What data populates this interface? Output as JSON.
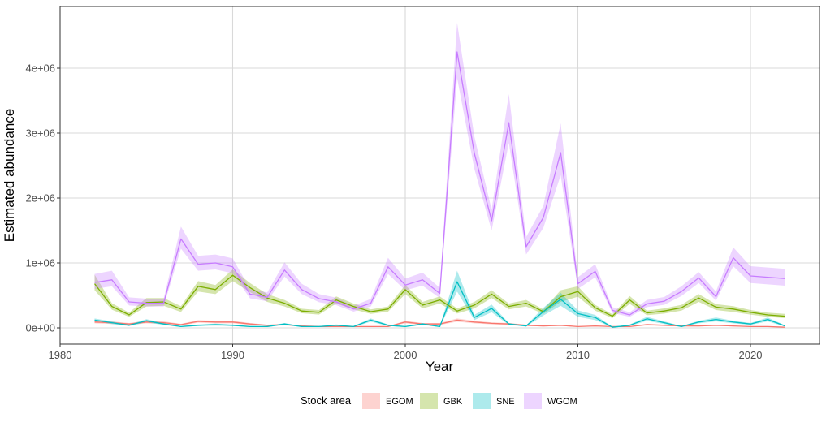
{
  "chart_data": {
    "type": "line",
    "xlabel": "Year",
    "ylabel": "Estimated abundance",
    "xlim": [
      1980,
      2024
    ],
    "ylim": [
      -250000,
      4950000
    ],
    "xticks": [
      1980,
      1990,
      2000,
      2010,
      2020
    ],
    "xtick_labels": [
      "1980",
      "1990",
      "2000",
      "2010",
      "2020"
    ],
    "yticks": [
      0,
      1000000,
      2000000,
      3000000,
      4000000
    ],
    "ytick_labels": [
      "0e+00",
      "1e+06",
      "2e+06",
      "3e+06",
      "4e+06"
    ],
    "grid": true,
    "legend": {
      "title": "Stock area",
      "position": "bottom",
      "entries": [
        "EGOM",
        "GBK",
        "SNE",
        "WGOM"
      ]
    },
    "x": [
      1982,
      1983,
      1984,
      1985,
      1986,
      1987,
      1988,
      1989,
      1990,
      1991,
      1992,
      1993,
      1994,
      1995,
      1996,
      1997,
      1998,
      1999,
      2000,
      2001,
      2002,
      2003,
      2004,
      2005,
      2006,
      2007,
      2008,
      2009,
      2010,
      2011,
      2012,
      2013,
      2014,
      2015,
      2016,
      2017,
      2018,
      2019,
      2020,
      2021,
      2022
    ],
    "series": [
      {
        "name": "EGOM",
        "color": "#F8766D",
        "values": [
          90000,
          80000,
          60000,
          90000,
          80000,
          50000,
          100000,
          90000,
          90000,
          60000,
          40000,
          50000,
          30000,
          20000,
          20000,
          20000,
          20000,
          20000,
          90000,
          60000,
          60000,
          120000,
          90000,
          70000,
          60000,
          40000,
          30000,
          40000,
          20000,
          30000,
          20000,
          20000,
          50000,
          40000,
          30000,
          30000,
          40000,
          30000,
          20000,
          20000,
          10000
        ],
        "lower": [
          70000,
          60000,
          45000,
          70000,
          60000,
          38000,
          80000,
          70000,
          70000,
          45000,
          30000,
          38000,
          22000,
          15000,
          15000,
          15000,
          15000,
          15000,
          70000,
          45000,
          45000,
          95000,
          70000,
          55000,
          45000,
          30000,
          22000,
          30000,
          15000,
          22000,
          15000,
          15000,
          38000,
          30000,
          22000,
          22000,
          30000,
          22000,
          15000,
          15000,
          7000
        ],
        "upper": [
          110000,
          100000,
          75000,
          110000,
          100000,
          62000,
          120000,
          110000,
          110000,
          75000,
          50000,
          62000,
          38000,
          25000,
          25000,
          25000,
          25000,
          25000,
          110000,
          75000,
          75000,
          145000,
          110000,
          85000,
          75000,
          50000,
          38000,
          50000,
          25000,
          38000,
          25000,
          25000,
          62000,
          50000,
          38000,
          38000,
          50000,
          38000,
          25000,
          25000,
          13000
        ]
      },
      {
        "name": "GBK",
        "color": "#7CAE00",
        "values": [
          680000,
          330000,
          200000,
          390000,
          400000,
          290000,
          640000,
          590000,
          810000,
          620000,
          460000,
          380000,
          260000,
          240000,
          430000,
          330000,
          250000,
          290000,
          590000,
          350000,
          430000,
          260000,
          350000,
          520000,
          330000,
          380000,
          250000,
          480000,
          560000,
          310000,
          180000,
          430000,
          230000,
          260000,
          310000,
          460000,
          320000,
          290000,
          240000,
          200000,
          180000
        ],
        "lower": [
          580000,
          280000,
          170000,
          330000,
          340000,
          245000,
          560000,
          520000,
          720000,
          550000,
          400000,
          330000,
          225000,
          205000,
          375000,
          285000,
          215000,
          250000,
          520000,
          300000,
          375000,
          220000,
          300000,
          460000,
          285000,
          330000,
          215000,
          400000,
          480000,
          265000,
          150000,
          370000,
          195000,
          220000,
          265000,
          400000,
          275000,
          245000,
          205000,
          170000,
          150000
        ],
        "upper": [
          820000,
          380000,
          235000,
          460000,
          460000,
          335000,
          720000,
          660000,
          900000,
          690000,
          520000,
          430000,
          295000,
          275000,
          485000,
          375000,
          285000,
          330000,
          660000,
          400000,
          485000,
          300000,
          400000,
          580000,
          375000,
          430000,
          285000,
          580000,
          640000,
          355000,
          210000,
          490000,
          265000,
          300000,
          355000,
          520000,
          365000,
          335000,
          275000,
          235000,
          215000
        ]
      },
      {
        "name": "SNE",
        "color": "#00BFC4",
        "values": [
          120000,
          80000,
          40000,
          110000,
          60000,
          20000,
          40000,
          50000,
          40000,
          20000,
          20000,
          60000,
          20000,
          20000,
          40000,
          20000,
          120000,
          40000,
          20000,
          60000,
          20000,
          710000,
          160000,
          300000,
          60000,
          30000,
          250000,
          440000,
          220000,
          160000,
          10000,
          40000,
          140000,
          80000,
          20000,
          90000,
          130000,
          90000,
          60000,
          130000,
          30000
        ],
        "lower": [
          95000,
          60000,
          28000,
          85000,
          45000,
          12000,
          28000,
          35000,
          28000,
          12000,
          12000,
          45000,
          12000,
          12000,
          28000,
          12000,
          95000,
          28000,
          12000,
          45000,
          12000,
          560000,
          120000,
          240000,
          45000,
          20000,
          190000,
          340000,
          170000,
          120000,
          5000,
          28000,
          110000,
          60000,
          12000,
          70000,
          100000,
          70000,
          45000,
          100000,
          20000
        ],
        "upper": [
          145000,
          100000,
          52000,
          135000,
          75000,
          28000,
          52000,
          65000,
          52000,
          28000,
          28000,
          75000,
          28000,
          28000,
          52000,
          28000,
          145000,
          52000,
          28000,
          75000,
          28000,
          880000,
          200000,
          360000,
          75000,
          40000,
          310000,
          540000,
          270000,
          200000,
          15000,
          52000,
          170000,
          100000,
          28000,
          110000,
          160000,
          110000,
          75000,
          160000,
          40000
        ]
      },
      {
        "name": "WGOM",
        "color": "#C77CFF",
        "values": [
          700000,
          740000,
          400000,
          380000,
          380000,
          1370000,
          980000,
          1000000,
          940000,
          520000,
          470000,
          890000,
          590000,
          450000,
          400000,
          290000,
          380000,
          940000,
          660000,
          740000,
          530000,
          4250000,
          2690000,
          1650000,
          3160000,
          1250000,
          1700000,
          2700000,
          680000,
          870000,
          270000,
          200000,
          370000,
          410000,
          560000,
          770000,
          480000,
          1080000,
          800000,
          780000,
          760000
        ],
        "lower": [
          600000,
          640000,
          345000,
          330000,
          330000,
          1220000,
          880000,
          900000,
          840000,
          455000,
          410000,
          790000,
          520000,
          395000,
          350000,
          250000,
          330000,
          830000,
          580000,
          650000,
          460000,
          3850000,
          2450000,
          1500000,
          2850000,
          1130000,
          1540000,
          2350000,
          600000,
          780000,
          230000,
          170000,
          320000,
          355000,
          490000,
          690000,
          420000,
          950000,
          690000,
          670000,
          650000
        ],
        "upper": [
          830000,
          880000,
          470000,
          450000,
          450000,
          1560000,
          1110000,
          1130000,
          1070000,
          600000,
          545000,
          1010000,
          680000,
          520000,
          465000,
          340000,
          445000,
          1080000,
          760000,
          850000,
          615000,
          4700000,
          2950000,
          1820000,
          3600000,
          1400000,
          1880000,
          3150000,
          780000,
          980000,
          320000,
          240000,
          430000,
          475000,
          640000,
          860000,
          560000,
          1240000,
          950000,
          930000,
          910000
        ]
      }
    ]
  }
}
